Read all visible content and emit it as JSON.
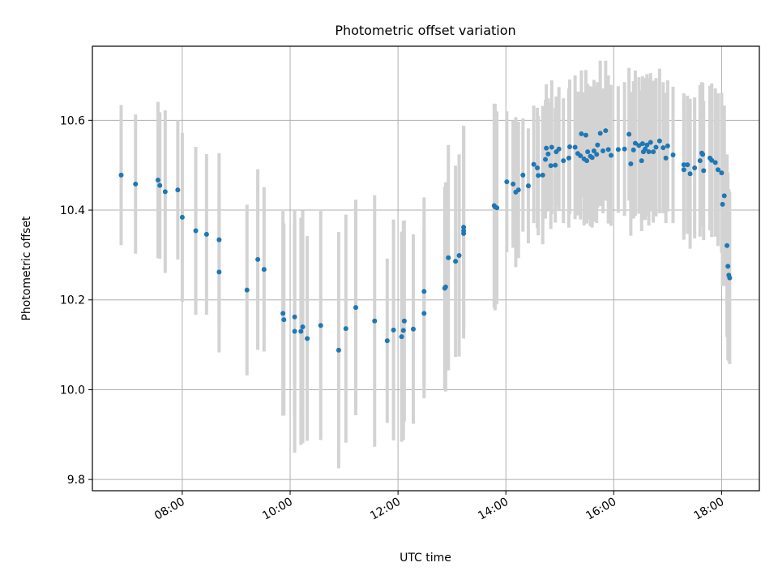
{
  "chart_data": {
    "type": "scatter",
    "title": "Photometric offset variation",
    "xlabel": "UTC time",
    "ylabel": "Photometric offset",
    "x_ticks": [
      "08:00",
      "10:00",
      "12:00",
      "14:00",
      "16:00",
      "18:00"
    ],
    "y_ticks": [
      "9.8",
      "10.0",
      "10.2",
      "10.4",
      "10.6"
    ],
    "xlim": [
      "06:20",
      "18:42"
    ],
    "ylim": [
      9.775,
      10.765
    ],
    "grid": true,
    "legend": "none",
    "colors": {
      "points": "#1f77b4",
      "error_bars": "#d3d3d3",
      "grid": "#b0b0b0"
    },
    "series": [
      {
        "points": [
          [
            "06:52",
            10.478,
            0.156
          ],
          [
            "07:08",
            10.458,
            0.155
          ],
          [
            "07:33",
            10.467,
            0.174
          ],
          [
            "07:35",
            10.455,
            0.163
          ],
          [
            "07:41",
            10.441,
            0.181
          ],
          [
            "07:55",
            10.445,
            0.155
          ],
          [
            "08:00",
            10.384,
            0.188
          ],
          [
            "08:15",
            10.354,
            0.187
          ],
          [
            "08:27",
            10.346,
            0.179
          ],
          [
            "08:41",
            10.334,
            0.193
          ],
          [
            "08:41",
            10.262,
            0.179
          ],
          [
            "09:12",
            10.222,
            0.19
          ],
          [
            "09:24",
            10.29,
            0.201
          ],
          [
            "09:31",
            10.268,
            0.183
          ],
          [
            "09:52",
            10.17,
            0.228
          ],
          [
            "09:53",
            10.156,
            0.214
          ],
          [
            "10:05",
            10.162,
            0.215
          ],
          [
            "10:05",
            10.13,
            0.27
          ],
          [
            "10:12",
            10.13,
            0.253
          ],
          [
            "10:14",
            10.14,
            0.259
          ],
          [
            "10:19",
            10.114,
            0.228
          ],
          [
            "10:34",
            10.143,
            0.255
          ],
          [
            "10:54",
            10.088,
            0.263
          ],
          [
            "11:02",
            10.136,
            0.254
          ],
          [
            "11:13",
            10.183,
            0.24
          ],
          [
            "11:34",
            10.153,
            0.28
          ],
          [
            "11:48",
            10.109,
            0.183
          ],
          [
            "11:55",
            10.133,
            0.246
          ],
          [
            "12:04",
            10.118,
            0.234
          ],
          [
            "12:06",
            10.132,
            0.244
          ],
          [
            "12:07",
            10.153,
            0.224
          ],
          [
            "12:17",
            10.135,
            0.211
          ],
          [
            "12:29",
            10.17,
            0.189
          ],
          [
            "12:29",
            10.219,
            0.209
          ],
          [
            "12:52",
            10.226,
            0.226
          ],
          [
            "12:53",
            10.229,
            0.233
          ],
          [
            "12:56",
            10.294,
            0.251
          ],
          [
            "13:04",
            10.286,
            0.213
          ],
          [
            "13:08",
            10.299,
            0.225
          ],
          [
            "13:13",
            10.348,
            0.234
          ],
          [
            "13:13",
            10.354,
            0.234
          ],
          [
            "13:13",
            10.362,
            0.226
          ],
          [
            "13:47",
            10.41,
            0.227
          ],
          [
            "13:48",
            10.407,
            0.23
          ],
          [
            "13:50",
            10.405,
            0.215
          ],
          [
            "14:01",
            10.463,
            0.157
          ],
          [
            "14:08",
            10.458,
            0.142
          ],
          [
            "14:11",
            10.44,
            0.167
          ],
          [
            "14:14",
            10.445,
            0.152
          ],
          [
            "14:19",
            10.478,
            0.126
          ],
          [
            "14:25",
            10.454,
            0.128
          ],
          [
            "14:31",
            10.502,
            0.131
          ],
          [
            "14:35",
            10.494,
            0.134
          ],
          [
            "14:36",
            10.477,
            0.133
          ],
          [
            "14:41",
            10.478,
            0.154
          ],
          [
            "14:44",
            10.513,
            0.132
          ],
          [
            "14:45",
            10.538,
            0.142
          ],
          [
            "14:47",
            10.525,
            0.124
          ],
          [
            "14:50",
            10.499,
            0.141
          ],
          [
            "14:51",
            10.54,
            0.149
          ],
          [
            "14:55",
            10.5,
            0.128
          ],
          [
            "14:56",
            10.53,
            0.123
          ],
          [
            "14:59",
            10.536,
            0.138
          ],
          [
            "15:04",
            10.51,
            0.139
          ],
          [
            "15:10",
            10.516,
            0.155
          ],
          [
            "15:11",
            10.541,
            0.15
          ],
          [
            "15:17",
            10.54,
            0.16
          ],
          [
            "15:20",
            10.526,
            0.138
          ],
          [
            "15:23",
            10.521,
            0.142
          ],
          [
            "15:24",
            10.57,
            0.141
          ],
          [
            "15:27",
            10.514,
            0.148
          ],
          [
            "15:29",
            10.567,
            0.145
          ],
          [
            "15:30",
            10.51,
            0.14
          ],
          [
            "15:31",
            10.53,
            0.151
          ],
          [
            "15:34",
            10.52,
            0.156
          ],
          [
            "15:36",
            10.517,
            0.156
          ],
          [
            "15:38",
            10.532,
            0.158
          ],
          [
            "15:41",
            10.524,
            0.153
          ],
          [
            "15:42",
            10.545,
            0.14
          ],
          [
            "15:45",
            10.571,
            0.162
          ],
          [
            "15:48",
            10.532,
            0.139
          ],
          [
            "15:51",
            10.577,
            0.156
          ],
          [
            "15:54",
            10.535,
            0.165
          ],
          [
            "15:57",
            10.522,
            0.157
          ],
          [
            "16:05",
            10.535,
            0.141
          ],
          [
            "16:12",
            10.536,
            0.149
          ],
          [
            "16:17",
            10.569,
            0.148
          ],
          [
            "16:19",
            10.503,
            0.16
          ],
          [
            "16:22",
            10.534,
            0.153
          ],
          [
            "16:24",
            10.549,
            0.162
          ],
          [
            "16:28",
            10.544,
            0.152
          ],
          [
            "16:31",
            10.51,
            0.157
          ],
          [
            "16:32",
            10.548,
            0.15
          ],
          [
            "16:33",
            10.53,
            0.151
          ],
          [
            "16:35",
            10.536,
            0.158
          ],
          [
            "16:37",
            10.545,
            0.158
          ],
          [
            "16:39",
            10.53,
            0.164
          ],
          [
            "16:41",
            10.551,
            0.154
          ],
          [
            "16:44",
            10.53,
            0.158
          ],
          [
            "16:47",
            10.54,
            0.154
          ],
          [
            "16:51",
            10.554,
            0.161
          ],
          [
            "16:55",
            10.539,
            0.146
          ],
          [
            "16:58",
            10.516,
            0.145
          ],
          [
            "17:00",
            10.543,
            0.146
          ],
          [
            "17:06",
            10.523,
            0.152
          ],
          [
            "17:18",
            10.501,
            0.159
          ],
          [
            "17:18",
            10.49,
            0.156
          ],
          [
            "17:22",
            10.501,
            0.154
          ],
          [
            "17:25",
            10.481,
            0.167
          ],
          [
            "17:30",
            10.494,
            0.157
          ],
          [
            "17:36",
            10.51,
            0.169
          ],
          [
            "17:38",
            10.527,
            0.158
          ],
          [
            "17:39",
            10.524,
            0.159
          ],
          [
            "17:40",
            10.488,
            0.155
          ],
          [
            "17:47",
            10.516,
            0.161
          ],
          [
            "17:49",
            10.511,
            0.171
          ],
          [
            "17:53",
            10.506,
            0.165
          ],
          [
            "17:56",
            10.49,
            0.17
          ],
          [
            "18:00",
            10.483,
            0.178
          ],
          [
            "18:01",
            10.413,
            0.182
          ],
          [
            "18:03",
            10.432,
            0.201
          ],
          [
            "18:06",
            10.321,
            0.203
          ],
          [
            "18:07",
            10.275,
            0.209
          ],
          [
            "18:08",
            10.255,
            0.192
          ],
          [
            "18:09",
            10.249,
            0.192
          ]
        ]
      }
    ]
  }
}
